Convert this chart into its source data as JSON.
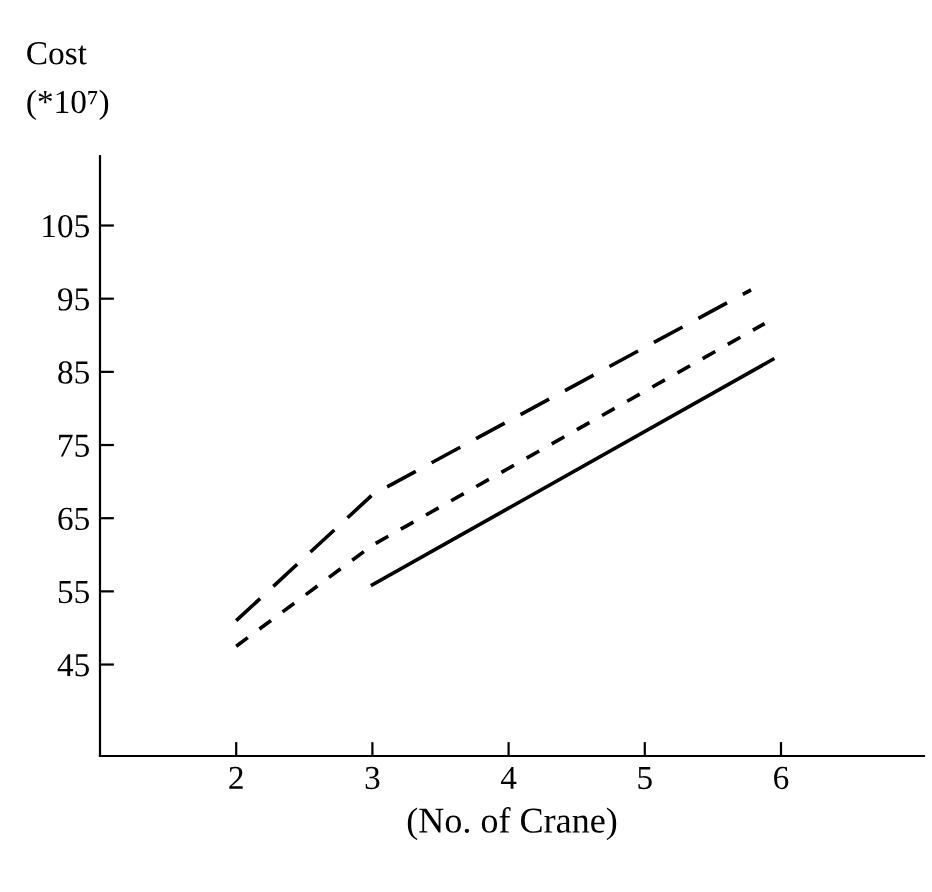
{
  "chart_data": {
    "type": "line",
    "ylabel": "Cost\n(*10⁷)",
    "xlabel": "(No. of Crane)",
    "xlim": [
      1,
      7.05
    ],
    "ylim": [
      32.5,
      114.5
    ],
    "xticks": [
      2,
      3,
      4,
      5,
      6
    ],
    "yticks": [
      45,
      55,
      65,
      75,
      85,
      95,
      105
    ],
    "grid": false,
    "legend": false,
    "marker": "none",
    "series": [
      {
        "color": "#000000",
        "line_style": "dashed",
        "x": [
          2,
          3,
          5.78
        ],
        "values": [
          51,
          68.2,
          96.2
        ]
      },
      {
        "color": "#000000",
        "line_style": "dotted",
        "x": [
          2,
          3,
          5.88
        ],
        "values": [
          47.5,
          61.3,
          91.6
        ]
      },
      {
        "color": "#000000",
        "line_style": "solid",
        "x": [
          3,
          5.94
        ],
        "values": [
          55.9,
          86.7
        ]
      }
    ]
  }
}
